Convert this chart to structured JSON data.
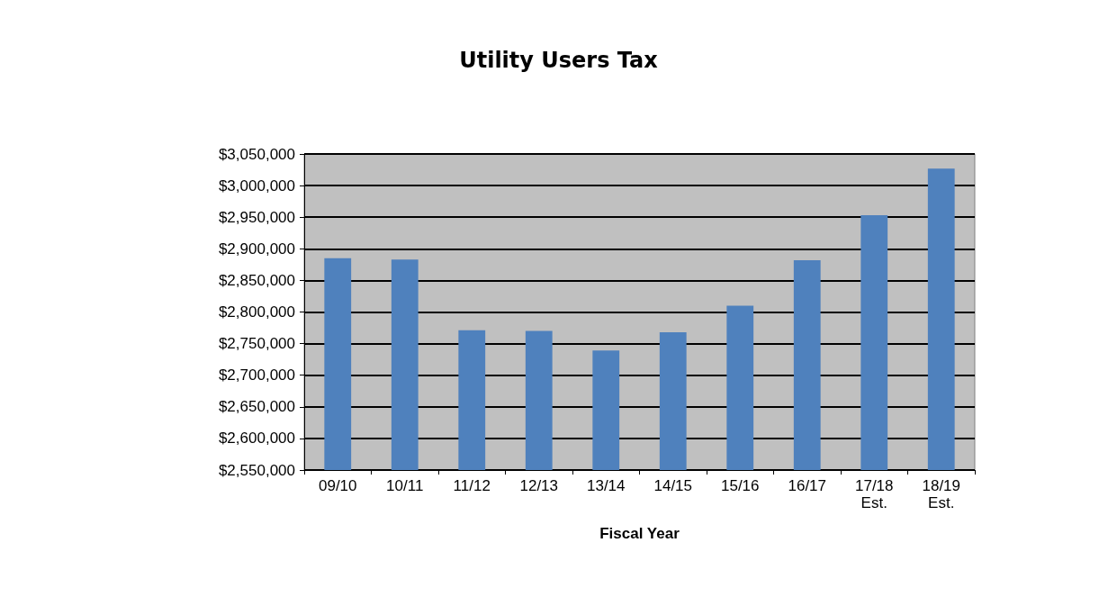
{
  "chart_data": {
    "type": "bar",
    "title": "Utility Users Tax",
    "xlabel": "Fiscal Year",
    "categories": [
      "09/10",
      "10/11",
      "11/12",
      "12/13",
      "13/14",
      "14/15",
      "15/16",
      "16/17",
      "17/18\nEst.",
      "18/19\nEst."
    ],
    "values": [
      2885000,
      2883000,
      2771000,
      2770000,
      2739000,
      2768000,
      2810000,
      2882000,
      2953000,
      3027000
    ],
    "color": "#4f81bd",
    "ylim": [
      2550000,
      3050000
    ],
    "yticks": [
      {
        "value": 2550000,
        "label": "$2,550,000"
      },
      {
        "value": 2600000,
        "label": "$2,600,000"
      },
      {
        "value": 2650000,
        "label": "$2,650,000"
      },
      {
        "value": 2700000,
        "label": "$2,700,000"
      },
      {
        "value": 2750000,
        "label": "$2,750,000"
      },
      {
        "value": 2800000,
        "label": "$2,800,000"
      },
      {
        "value": 2850000,
        "label": "$2,850,000"
      },
      {
        "value": 2900000,
        "label": "$2,900,000"
      },
      {
        "value": 2950000,
        "label": "$2,950,000"
      },
      {
        "value": 3000000,
        "label": "$3,000,000"
      },
      {
        "value": 3050000,
        "label": "$3,050,000"
      }
    ],
    "grid": "y"
  }
}
